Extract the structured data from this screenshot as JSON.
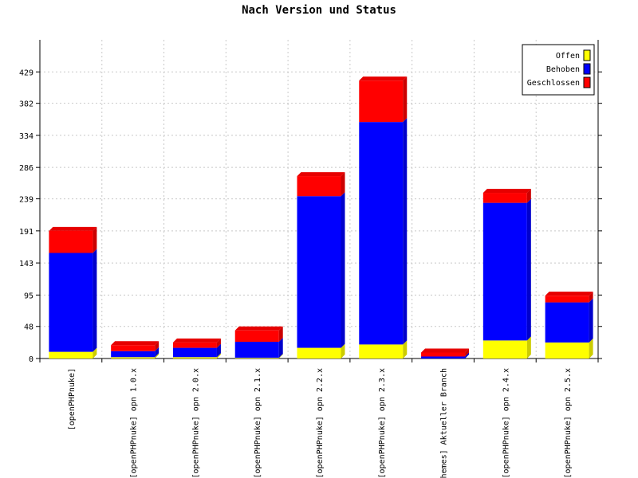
{
  "chart_data": {
    "type": "bar",
    "stacked": true,
    "title": "Nach Version und Status",
    "categories": [
      "[openPHPnuke]",
      "[openPHPnuke] opn 1.0.x",
      "[openPHPnuke] opn 2.0.x",
      "[openPHPnuke] opn 2.1.x",
      "[openPHPnuke] opn 2.2.x",
      "[openPHPnuke] opn 2.3.x",
      "themes] Aktueller Branch",
      "[openPHPnuke] opn 2.4.x",
      "[openPHPnuke] opn 2.5.x"
    ],
    "series": [
      {
        "name": "Offen",
        "color": "#ffff00",
        "values": [
          10,
          2,
          2,
          1,
          16,
          21,
          0,
          27,
          24
        ]
      },
      {
        "name": "Behoben",
        "color": "#0000ff",
        "values": [
          148,
          9,
          14,
          24,
          227,
          333,
          3,
          206,
          60
        ]
      },
      {
        "name": "Geschlossen",
        "color": "#ff0000",
        "values": [
          33,
          9,
          8,
          17,
          30,
          62,
          6,
          15,
          10
        ]
      }
    ],
    "yticks": [
      0,
      48,
      95,
      143,
      191,
      239,
      286,
      334,
      382,
      429
    ],
    "ylim": [
      0,
      477
    ],
    "grid": true,
    "legend_position": "top-right"
  }
}
